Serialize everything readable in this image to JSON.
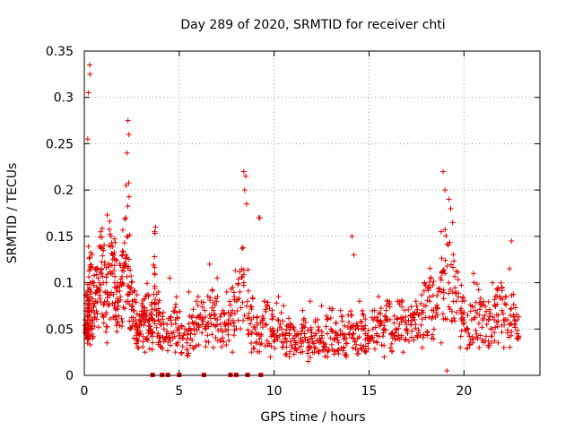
{
  "chart_data": {
    "type": "scatter",
    "title": "Day 289 of 2020, SRMTID for receiver chti",
    "xlabel": "GPS time / hours",
    "ylabel": "SRMTID / TECUs",
    "xlim": [
      0,
      24
    ],
    "ylim": [
      0,
      0.35
    ],
    "xticks": [
      0,
      5,
      10,
      15,
      20
    ],
    "xtick_labels": [
      "0",
      "5",
      "10",
      "15",
      "20"
    ],
    "yticks": [
      0,
      0.05,
      0.1,
      0.15,
      0.2,
      0.25,
      0.3,
      0.35
    ],
    "ytick_labels": [
      "0",
      "0.05",
      "0.1",
      "0.15",
      "0.2",
      "0.25",
      "0.3",
      "0.35"
    ],
    "grid": true,
    "marker": "+",
    "color": "#e00000",
    "baseline_points_x": [
      3.6,
      4.1,
      4.4,
      5.0,
      6.3,
      7.7,
      8.0,
      8.6,
      9.3
    ],
    "points": {
      "x": [
        0.05,
        0.1,
        0.15,
        0.2,
        0.25,
        0.3,
        0.35,
        0.4,
        0.5,
        0.6,
        0.7,
        0.8,
        0.9,
        1.0,
        1.1,
        1.2,
        1.3,
        1.4,
        1.5,
        1.6,
        1.7,
        1.8,
        1.9,
        2.0,
        2.1,
        2.2,
        2.3,
        2.4,
        2.5,
        2.6,
        2.7,
        2.8,
        2.9,
        3.0,
        3.1,
        3.2,
        3.3,
        3.4,
        3.5,
        3.6,
        3.7,
        3.8,
        3.9,
        4.0,
        4.2,
        4.4,
        4.6,
        4.8,
        5.0,
        5.2,
        5.4,
        5.6,
        5.8,
        6.0,
        6.2,
        6.4,
        6.6,
        6.8,
        7.0,
        7.2,
        7.4,
        7.6,
        7.8,
        8.0,
        8.2,
        8.4,
        8.6,
        8.8,
        9.0,
        9.2,
        9.4,
        9.6,
        9.8,
        10.0,
        10.2,
        10.4,
        10.6,
        10.8,
        11.0,
        11.2,
        11.4,
        11.6,
        11.8,
        12.0,
        12.2,
        12.4,
        12.6,
        12.8,
        13.0,
        13.2,
        13.4,
        13.6,
        13.8,
        14.0,
        14.2,
        14.4,
        14.6,
        14.8,
        15.0,
        15.2,
        15.4,
        15.6,
        15.8,
        16.0,
        16.2,
        16.4,
        16.6,
        16.8,
        17.0,
        17.2,
        17.4,
        17.6,
        17.8,
        18.0,
        18.2,
        18.4,
        18.6,
        18.8,
        19.0,
        19.2,
        19.4,
        19.6,
        19.8,
        20.0,
        20.2,
        20.4,
        20.6,
        20.8,
        21.0,
        21.2,
        21.4,
        21.6,
        21.8,
        22.0,
        22.2,
        22.4,
        22.6,
        22.8,
        0.25,
        0.28,
        0.3,
        0.22,
        0.18,
        2.2,
        2.3,
        2.35,
        2.25,
        8.4,
        8.5,
        8.45,
        8.55,
        9.2,
        9.25,
        18.8,
        18.9,
        19.0,
        19.2,
        19.3,
        19.4,
        3.7,
        3.75,
        14.1,
        14.2,
        22.4,
        22.5,
        2.0,
        1.5,
        6.6,
        7.0,
        0.5,
        0.7,
        4.5,
        5.5,
        6.0,
        7.5,
        9.5,
        10.5,
        11.5,
        12.5,
        13.5,
        14.5,
        15.5,
        16.5,
        17.5,
        20.5,
        21.5,
        22.0,
        0.15,
        1.2,
        2.8,
        3.2,
        4.8,
        5.8,
        6.8,
        7.8,
        8.8,
        9.8,
        10.8,
        11.8,
        12.8,
        13.8,
        14.8,
        15.8,
        16.8,
        17.8,
        18.8,
        19.8,
        20.8,
        21.8,
        22.8,
        0.9,
        1.9,
        3.9,
        5.9,
        7.9,
        9.9,
        11.9,
        13.9,
        15.9,
        17.9,
        19.9,
        21.9,
        19.1,
        22.1,
        1.6,
        18.3
      ],
      "y": [
        0.06,
        0.055,
        0.065,
        0.07,
        0.08,
        0.1,
        0.09,
        0.06,
        0.075,
        0.08,
        0.09,
        0.1,
        0.11,
        0.1,
        0.09,
        0.08,
        0.12,
        0.11,
        0.13,
        0.1,
        0.09,
        0.08,
        0.085,
        0.1,
        0.12,
        0.13,
        0.15,
        0.09,
        0.075,
        0.07,
        0.06,
        0.05,
        0.045,
        0.055,
        0.06,
        0.065,
        0.07,
        0.06,
        0.05,
        0.06,
        0.11,
        0.07,
        0.06,
        0.055,
        0.05,
        0.045,
        0.055,
        0.06,
        0.05,
        0.04,
        0.035,
        0.045,
        0.05,
        0.055,
        0.06,
        0.05,
        0.065,
        0.07,
        0.06,
        0.05,
        0.055,
        0.06,
        0.07,
        0.08,
        0.09,
        0.1,
        0.08,
        0.06,
        0.05,
        0.045,
        0.06,
        0.055,
        0.05,
        0.045,
        0.06,
        0.05,
        0.04,
        0.045,
        0.04,
        0.035,
        0.04,
        0.045,
        0.035,
        0.04,
        0.045,
        0.04,
        0.035,
        0.045,
        0.05,
        0.04,
        0.035,
        0.045,
        0.04,
        0.05,
        0.045,
        0.04,
        0.05,
        0.045,
        0.04,
        0.05,
        0.045,
        0.055,
        0.05,
        0.06,
        0.045,
        0.05,
        0.055,
        0.06,
        0.05,
        0.055,
        0.06,
        0.065,
        0.07,
        0.075,
        0.08,
        0.07,
        0.065,
        0.09,
        0.11,
        0.1,
        0.09,
        0.08,
        0.07,
        0.06,
        0.05,
        0.06,
        0.07,
        0.065,
        0.06,
        0.055,
        0.05,
        0.06,
        0.065,
        0.07,
        0.06,
        0.055,
        0.065,
        0.06,
        0.055,
        0.335,
        0.325,
        0.305,
        0.255,
        0.205,
        0.275,
        0.26,
        0.24,
        0.22,
        0.215,
        0.2,
        0.185,
        0.17,
        0.17,
        0.155,
        0.22,
        0.2,
        0.19,
        0.18,
        0.165,
        0.155,
        0.16,
        0.15,
        0.13,
        0.115,
        0.145,
        0.13,
        0.125,
        0.12,
        0.105,
        0.1,
        0.115,
        0.105,
        0.09,
        0.085,
        0.09,
        0.08,
        0.075,
        0.07,
        0.075,
        0.07,
        0.08,
        0.085,
        0.08,
        0.075,
        0.11,
        0.1,
        0.095,
        0.04,
        0.035,
        0.03,
        0.025,
        0.025,
        0.03,
        0.03,
        0.025,
        0.025,
        0.02,
        0.02,
        0.015,
        0.02,
        0.02,
        0.025,
        0.02,
        0.025,
        0.03,
        0.035,
        0.03,
        0.03,
        0.035,
        0.045,
        0.115,
        0.1,
        0.09,
        0.08,
        0.085,
        0.07,
        0.08,
        0.065,
        0.07,
        0.075,
        0.08,
        0.085,
        0.005,
        0.03,
        0.095,
        0.04
      ]
    }
  }
}
